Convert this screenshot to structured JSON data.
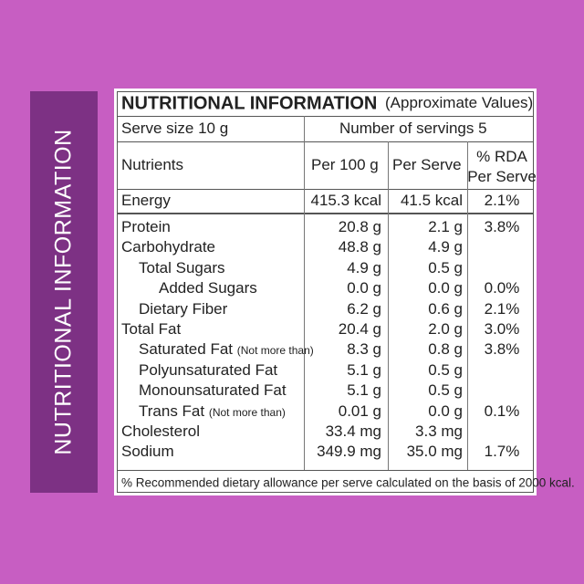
{
  "side_banner": "NUTRITIONAL INFORMATION",
  "header": {
    "title": "NUTRITIONAL INFORMATION",
    "subtitle": "(Approximate Values)"
  },
  "serving": {
    "serve_size": "Serve size 10 g",
    "servings": "Number of servings 5"
  },
  "columns": {
    "nutrients": "Nutrients",
    "per_100g": "Per 100 g",
    "per_serve": "Per Serve",
    "rda": "% RDA",
    "rda_sub": "Per Serve"
  },
  "energy": {
    "name": "Energy",
    "per_100g": "415.3 kcal",
    "per_serve": "41.5 kcal",
    "rda": "2.1%"
  },
  "rows": [
    {
      "name": "Protein",
      "per_100g": "20.8 g",
      "per_serve": "2.1 g",
      "rda": "3.8%"
    },
    {
      "name": "Carbohydrate",
      "per_100g": "48.8 g",
      "per_serve": "4.9 g"
    },
    {
      "name": "Total Sugars",
      "per_100g": "4.9 g",
      "per_serve": "0.5 g"
    },
    {
      "name": "Added Sugars",
      "per_100g": "0.0 g",
      "per_serve": "0.0 g",
      "rda": "0.0%"
    },
    {
      "name": "Dietary Fiber",
      "per_100g": "6.2 g",
      "per_serve": "0.6 g",
      "rda": "2.1%"
    },
    {
      "name": "Total Fat",
      "per_100g": "20.4 g",
      "per_serve": "2.0 g",
      "rda": "3.0%"
    },
    {
      "name": "Saturated Fat",
      "note": "(Not more than)",
      "per_100g": "8.3 g",
      "per_serve": "0.8 g",
      "rda": "3.8%"
    },
    {
      "name": "Polyunsaturated Fat",
      "per_100g": "5.1 g",
      "per_serve": "0.5 g"
    },
    {
      "name": "Monounsaturated Fat",
      "per_100g": "5.1 g",
      "per_serve": "0.5 g"
    },
    {
      "name": "Trans Fat",
      "note": "(Not more than)",
      "per_100g": "0.01 g",
      "per_serve": "0.0 g",
      "rda": "0.1%"
    },
    {
      "name": "Cholesterol",
      "per_100g": "33.4 mg",
      "per_serve": "3.3 mg"
    },
    {
      "name": "Sodium",
      "per_100g": "349.9 mg",
      "per_serve": "35.0 mg",
      "rda": "1.7%"
    }
  ],
  "footer": "% Recommended dietary allowance per serve calculated on the basis of 2000 kcal."
}
